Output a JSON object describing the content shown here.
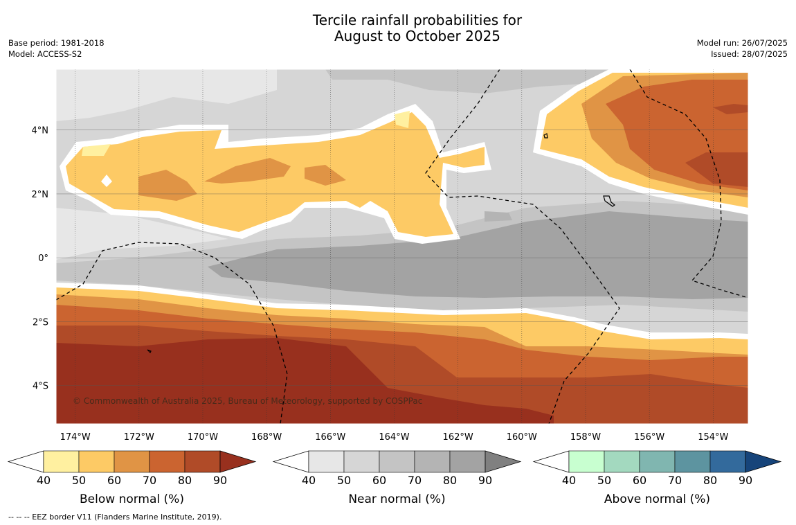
{
  "title_line1": "Tercile rainfall probabilities for",
  "title_line2": "August to October 2025",
  "base_period": "Base period: 1981-2018",
  "model": "Model: ACCESS-S2",
  "model_run": "Model run: 26/07/2025",
  "issued": "Issued: 28/07/2025",
  "copyright": "© Commonwealth of Australia 2025, Bureau of Meteorology, supported by COSPPac",
  "footer": "--  --  -- EEZ border V11 (Flanders Marine Institute, 2019).",
  "lat_ticks": [
    {
      "label": "4°N",
      "value": 4
    },
    {
      "label": "2°N",
      "value": 2
    },
    {
      "label": "0°",
      "value": 0
    },
    {
      "label": "2°S",
      "value": -2
    },
    {
      "label": "4°S",
      "value": -4
    }
  ],
  "lon_ticks": [
    {
      "label": "174°W",
      "value": -174
    },
    {
      "label": "172°W",
      "value": -172
    },
    {
      "label": "170°W",
      "value": -170
    },
    {
      "label": "168°W",
      "value": -168
    },
    {
      "label": "166°W",
      "value": -166
    },
    {
      "label": "164°W",
      "value": -164
    },
    {
      "label": "162°W",
      "value": -162
    },
    {
      "label": "160°W",
      "value": -160
    },
    {
      "label": "158°W",
      "value": -158
    },
    {
      "label": "156°W",
      "value": -156
    },
    {
      "label": "154°W",
      "value": -154
    }
  ],
  "extent": {
    "lon_min": -174.6,
    "lon_max": -152.9,
    "lat_min": -5.2,
    "lat_max": 5.9
  },
  "colorbars": [
    {
      "title": "Below normal (%)",
      "ticks": [
        "40",
        "50",
        "60",
        "70",
        "80",
        "90"
      ],
      "colors": [
        "#fff0a0",
        "#fdca65",
        "#e09445",
        "#cb6430",
        "#b04b28",
        "#98301e"
      ]
    },
    {
      "title": "Near normal (%)",
      "ticks": [
        "40",
        "50",
        "60",
        "70",
        "80",
        "90"
      ],
      "colors": [
        "#e7e7e7",
        "#d6d6d6",
        "#c4c4c4",
        "#b4b4b4",
        "#a3a3a3",
        "#808080"
      ]
    },
    {
      "title": "Above normal (%)",
      "ticks": [
        "40",
        "50",
        "60",
        "70",
        "80",
        "90"
      ],
      "colors": [
        "#c8ffd0",
        "#a3d9bf",
        "#80b6b0",
        "#5d94a0",
        "#336a9c",
        "#16447a"
      ]
    }
  ]
}
